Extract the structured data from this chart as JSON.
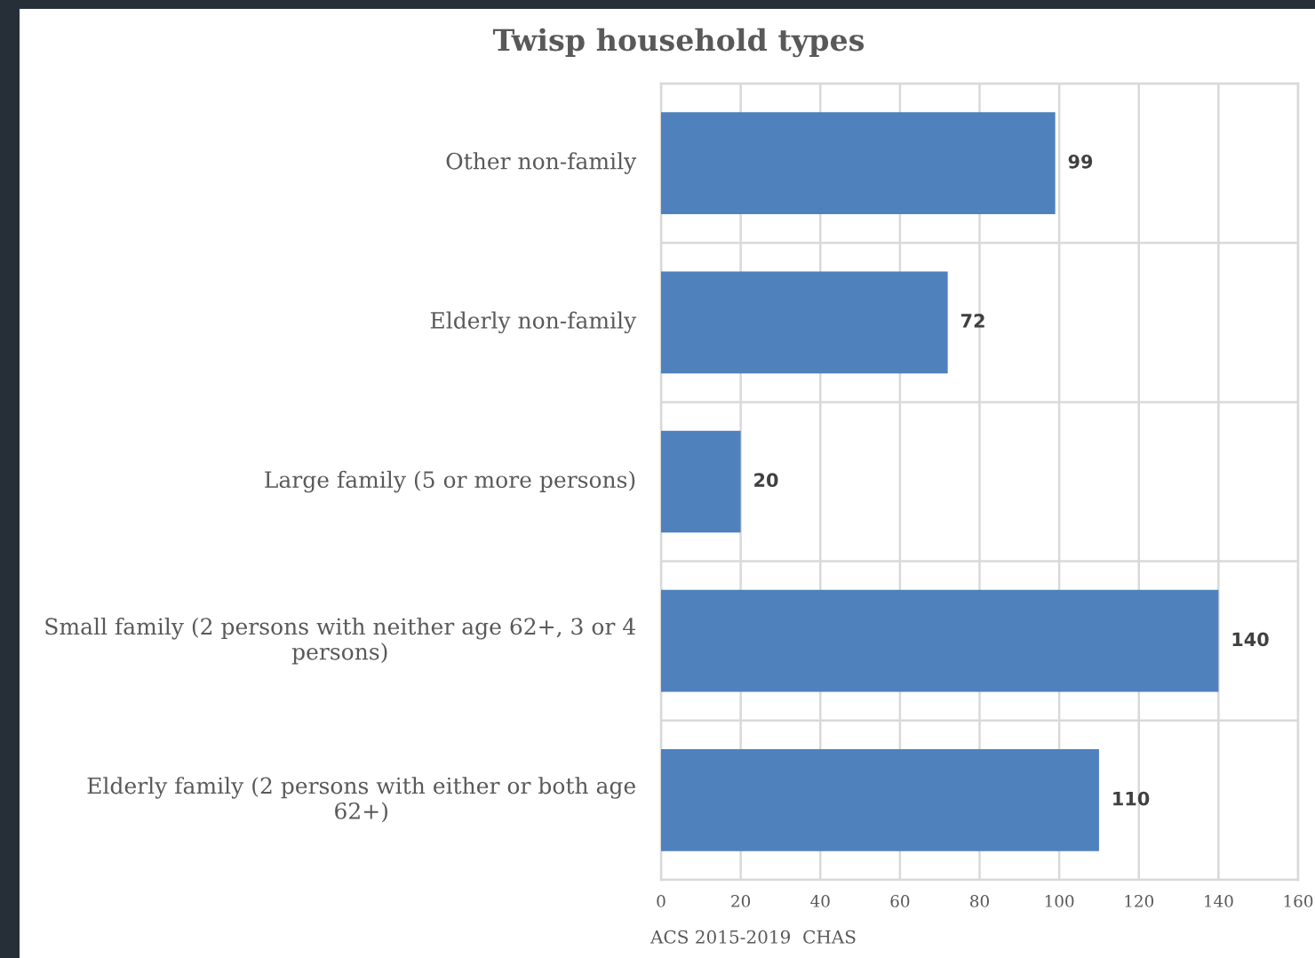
{
  "chart_data": {
    "type": "bar",
    "orientation": "horizontal",
    "title": "Twisp household types",
    "categories": [
      "Other non-family",
      "Elderly non-family",
      "Large family (5 or more persons)",
      "Small family (2 persons with neither age 62+, 3 or 4 persons)",
      "Elderly family (2 persons with either or both age 62+)"
    ],
    "values": [
      99,
      72,
      20,
      140,
      110
    ],
    "color": "#4f81bd",
    "xlim": [
      0,
      160
    ],
    "xticks": [
      0,
      20,
      40,
      60,
      80,
      100,
      120,
      140,
      160
    ],
    "grid": true,
    "data_labels": true,
    "annotations": [
      "ACS 2015-2019  CHAS"
    ]
  }
}
